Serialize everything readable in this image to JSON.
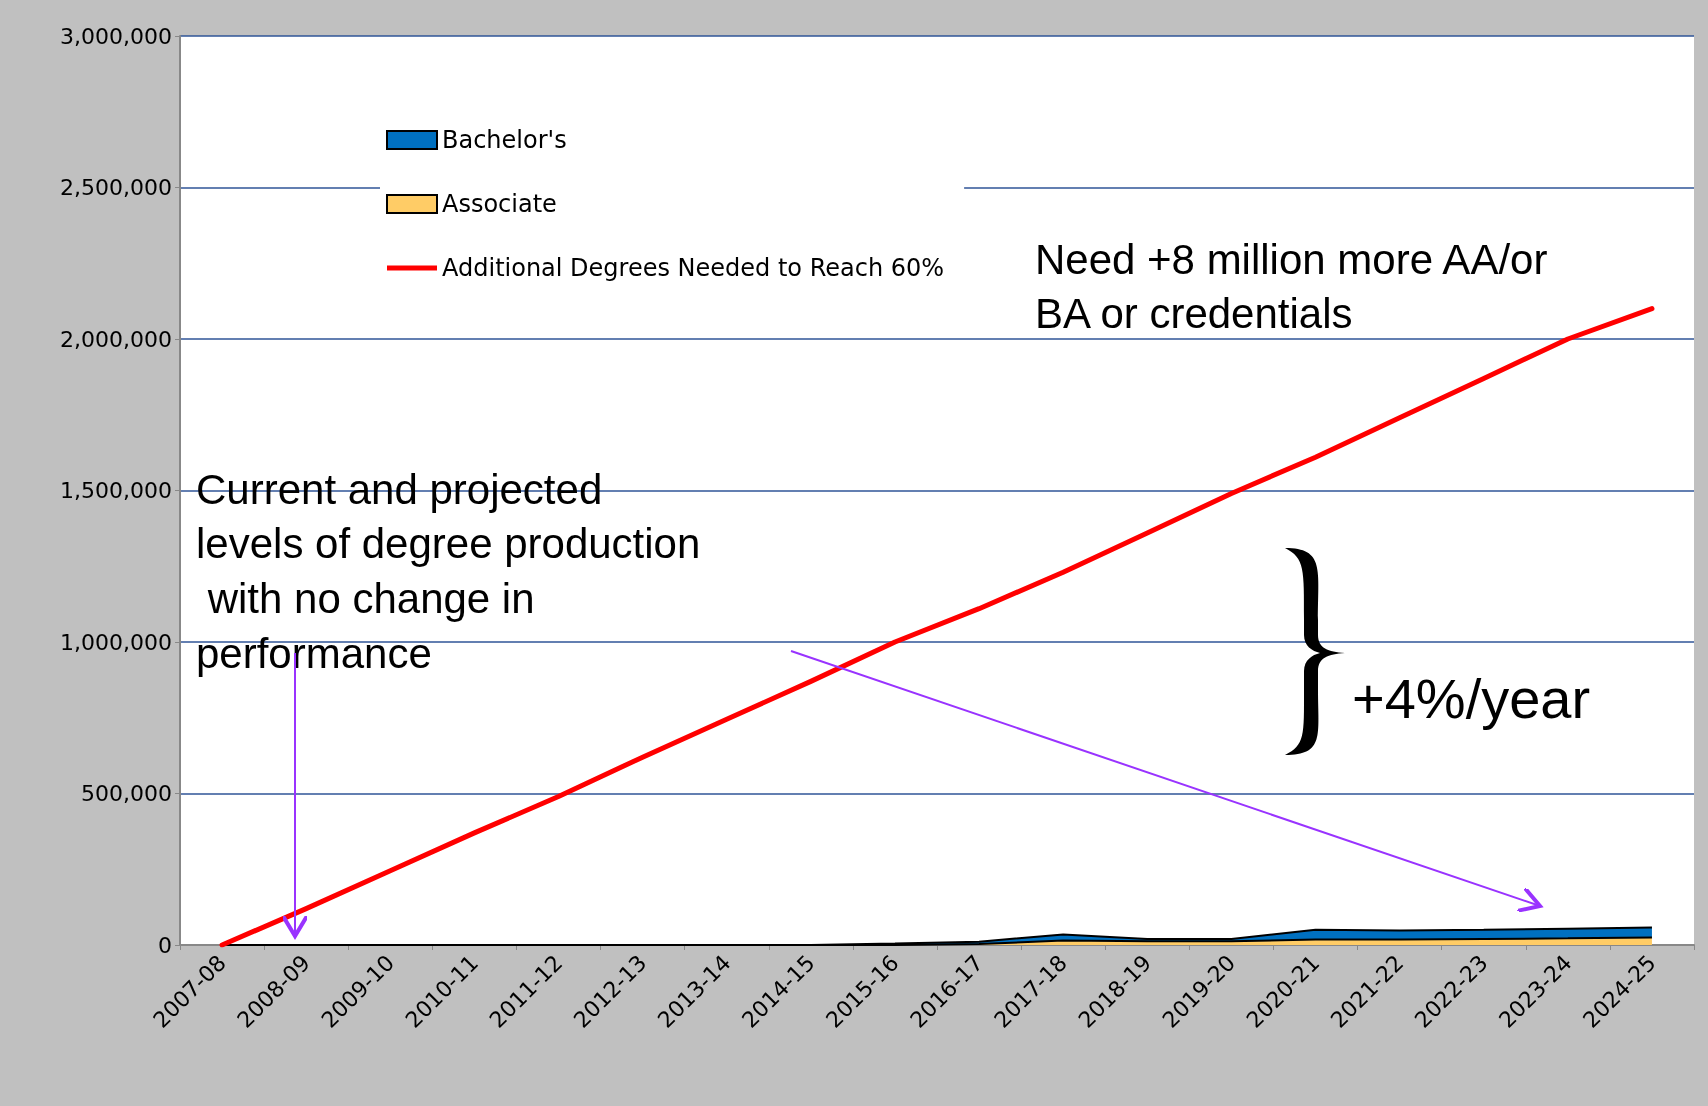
{
  "chart_data": {
    "type": "area",
    "stacked": true,
    "categories": [
      "2007-08",
      "2008-09",
      "2009-10",
      "2010-11",
      "2011-12",
      "2012-13",
      "2013-14",
      "2014-15",
      "2015-16",
      "2016-17",
      "2017-18",
      "2018-19",
      "2019-20",
      "2020-21",
      "2021-22",
      "2022-23",
      "2023-24",
      "2024-25"
    ],
    "series": [
      {
        "name": "Associate",
        "color": "#ffcc66",
        "values": [
          0,
          0,
          0,
          0,
          0,
          0,
          0,
          0,
          0,
          3000,
          15000,
          12000,
          12000,
          18000,
          18000,
          20000,
          22000,
          25000
        ]
      },
      {
        "name": "Bachelor's",
        "color": "#0070c0",
        "values": [
          0,
          0,
          0,
          0,
          0,
          0,
          0,
          0,
          5000,
          8000,
          20000,
          8000,
          8000,
          32000,
          30000,
          30000,
          32000,
          33000
        ]
      },
      {
        "name": "Additional Degrees Needed to Reach 60%",
        "type": "line",
        "color": "#ff0000",
        "values": [
          0,
          120000,
          245000,
          370000,
          490000,
          620000,
          745000,
          870000,
          1000000,
          1110000,
          1230000,
          1360000,
          1490000,
          1610000,
          1740000,
          1870000,
          2000000,
          2100000
        ]
      }
    ],
    "ylim": [
      0,
      3000000
    ],
    "yticks": [
      0,
      {
        "value": 500000,
        "label": "500,000"
      },
      {
        "value": 1000000,
        "label": "1,000,000"
      },
      {
        "value": 1500000,
        "label": "1,500,000"
      },
      {
        "value": 2000000,
        "label": "2,000,000"
      },
      {
        "value": 2500000,
        "label": "2,500,000"
      },
      {
        "value": 3000000,
        "label": "3,000,000"
      }
    ],
    "grid": "y",
    "legend": "top left",
    "marker": "none",
    "line_style": "solid",
    "annotations": [
      "Need +8 million more AA/or BA or credentials",
      "Current and projected levels of degree production with no change in performance",
      "+4%/year"
    ]
  }
}
